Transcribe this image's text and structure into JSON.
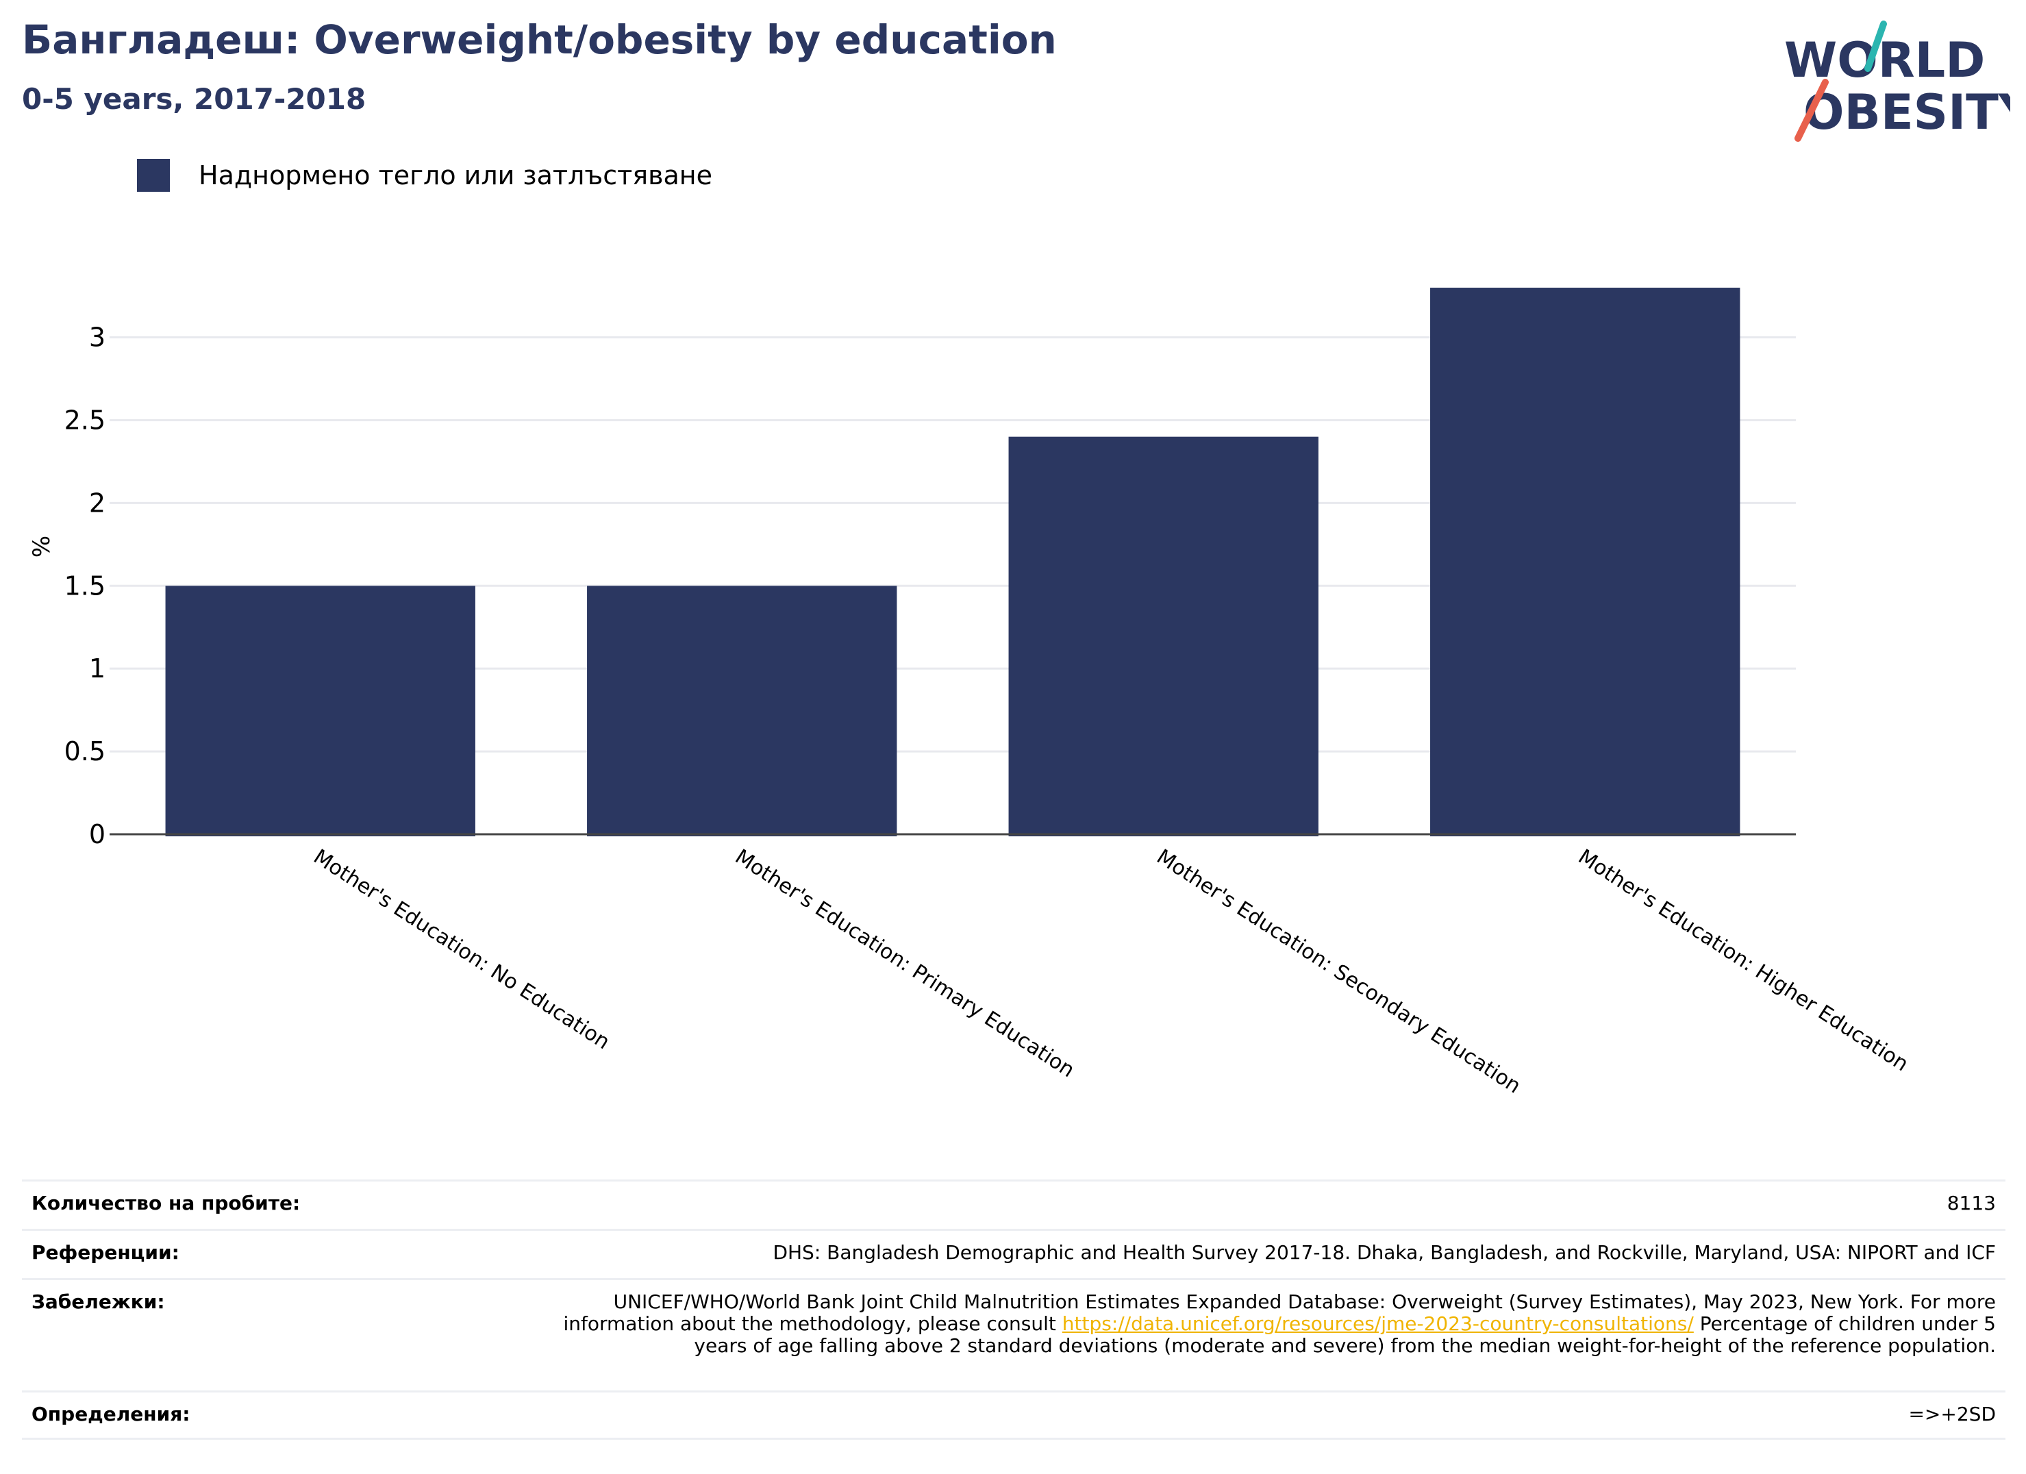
{
  "header": {
    "title": "Бангладеш: Overweight/obesity by education",
    "subtitle": "0-5 years, 2017-2018"
  },
  "logo": {
    "line1": "WORLD",
    "line2": "OBESITY"
  },
  "legend": {
    "label": "Наднормено тегло или затлъстяване",
    "color": "#2b3761"
  },
  "chart_data": {
    "type": "bar",
    "title": "Бангладеш: Overweight/obesity by education",
    "subtitle": "0-5 years, 2017-2018",
    "categories": [
      "Mother's Education: No Education",
      "Mother's Education: Primary Education",
      "Mother's Education: Secondary Education",
      "Mother's Education: Higher Education"
    ],
    "series": [
      {
        "name": "Наднормено тегло или затлъстяване",
        "values": [
          1.5,
          1.5,
          2.4,
          3.3
        ],
        "color": "#2b3761"
      }
    ],
    "xlabel": "",
    "ylabel": "%",
    "ylim": [
      0,
      3.3
    ],
    "yticks": [
      "0",
      "0.5",
      "1",
      "1.5",
      "2",
      "2.5",
      "3"
    ],
    "grid": true,
    "legend_position": "top-left"
  },
  "notes": {
    "sample_label": "Количество на пробите:",
    "sample_value": "8113",
    "references_label": "Референции:",
    "references_value": "DHS: Bangladesh Demographic and Health Survey 2017-18. Dhaka, Bangladesh, and Rockville, Maryland, USA: NIPORT and ICF",
    "remarks_label": "Забележки:",
    "remarks_text_before": "UNICEF/WHO/World Bank Joint Child Malnutrition Estimates Expanded Database: Overweight (Survey Estimates), May 2023, New York. For more information about the methodology, please consult ",
    "remarks_link": "https://data.unicef.org/resources/jme-2023-country-consultations/",
    "remarks_text_after": " Percentage of children under 5 years of age falling above 2 standard deviations (moderate and severe) from the median weight-for-height of the reference population.",
    "definitions_label": "Определения:",
    "definitions_value": "=>+2SD"
  }
}
